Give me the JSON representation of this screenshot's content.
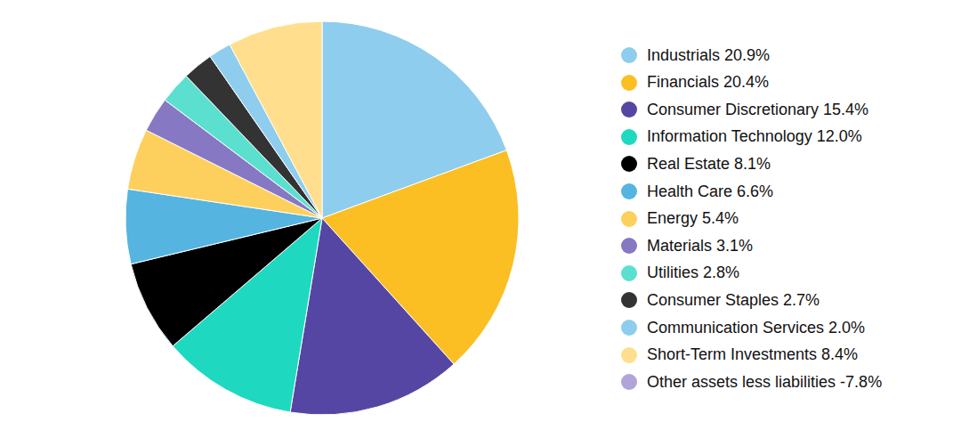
{
  "chart_data": {
    "type": "pie",
    "labels": [
      "Industrials",
      "Financials",
      "Consumer Discretionary",
      "Information Technology",
      "Real Estate",
      "Health Care",
      "Energy",
      "Materials",
      "Utilities",
      "Consumer Staples",
      "Communication Services",
      "Short-Term Investments",
      "Other assets less liabilities"
    ],
    "values": [
      20.9,
      20.4,
      15.4,
      12.0,
      8.1,
      6.6,
      5.4,
      3.1,
      2.8,
      2.7,
      2.0,
      8.4,
      -7.8
    ],
    "value_labels": [
      "20.9%",
      "20.4%",
      "15.4%",
      "12.0%",
      "8.1%",
      "6.6%",
      "5.4%",
      "3.1%",
      "2.8%",
      "2.7%",
      "2.0%",
      "8.4%",
      "-7.8%"
    ],
    "colors": [
      "#8ecded",
      "#fbbf24",
      "#5646a3",
      "#1ed9c0",
      "#000000",
      "#56b4e0",
      "#fdd05e",
      "#8778c4",
      "#5be0d0",
      "#333333",
      "#8ecded",
      "#ffdf8e",
      "#b0a4d9"
    ],
    "legend": "right"
  }
}
